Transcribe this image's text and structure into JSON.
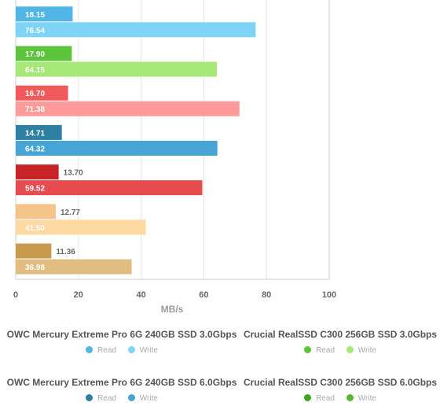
{
  "chart_data": {
    "type": "bar",
    "orientation": "horizontal",
    "xlabel": "MB/s",
    "xlim": [
      0,
      100
    ],
    "xticks": [
      0,
      20,
      40,
      60,
      80,
      100
    ],
    "grid": true,
    "groups": [
      {
        "read": 18.15,
        "write": 76.54,
        "read_color": "#4fb6e6",
        "write_color": "#7dd4f7",
        "read_label_inside": true,
        "write_label_inside": true
      },
      {
        "read": 17.9,
        "write": 64.15,
        "read_color": "#5cc43c",
        "write_color": "#a5e878",
        "read_label_inside": true,
        "write_label_inside": true
      },
      {
        "read": 16.7,
        "write": 71.38,
        "read_color": "#f15a5a",
        "write_color": "#fd9b9b",
        "read_label_inside": true,
        "write_label_inside": true
      },
      {
        "read": 14.71,
        "write": 64.32,
        "read_color": "#2e7fa4",
        "write_color": "#46a5d4",
        "read_label_inside": true,
        "write_label_inside": true
      },
      {
        "read": 13.7,
        "write": 59.52,
        "read_color": "#c72428",
        "write_color": "#e54b4f",
        "read_label_inside": false,
        "write_label_inside": true
      },
      {
        "read": 12.77,
        "write": 41.5,
        "read_color": "#f5c488",
        "write_color": "#ffd9a1",
        "read_label_inside": false,
        "write_label_inside": true
      },
      {
        "read": 11.36,
        "write": 36.98,
        "read_color": "#c9994e",
        "write_color": "#e1bd81",
        "read_label_inside": false,
        "write_label_inside": true
      }
    ]
  },
  "legend": [
    {
      "title": "OWC Mercury Extreme Pro 6G 240GB SSD 3.0Gbps",
      "read_label": "Read",
      "write_label": "Write",
      "read_color": "#4fb6e6",
      "write_color": "#7dd4f7"
    },
    {
      "title": "Crucial RealSSD C300 256GB SSD 3.0Gbps",
      "read_label": "Read",
      "write_label": "Write",
      "read_color": "#5cc43c",
      "write_color": "#a5e878"
    },
    {
      "title": "OWC Mercury Extreme Pro 6G 240GB SSD 6.0Gbps",
      "read_label": "Read",
      "write_label": "Write",
      "read_color": "#2e7fa4",
      "write_color": "#46a5d4"
    },
    {
      "title": "Crucial RealSSD C300 256GB SSD 6.0Gbps",
      "read_label": "Read",
      "write_label": "Write",
      "read_color": "#3ea51f",
      "write_color": "#55b82f"
    }
  ]
}
